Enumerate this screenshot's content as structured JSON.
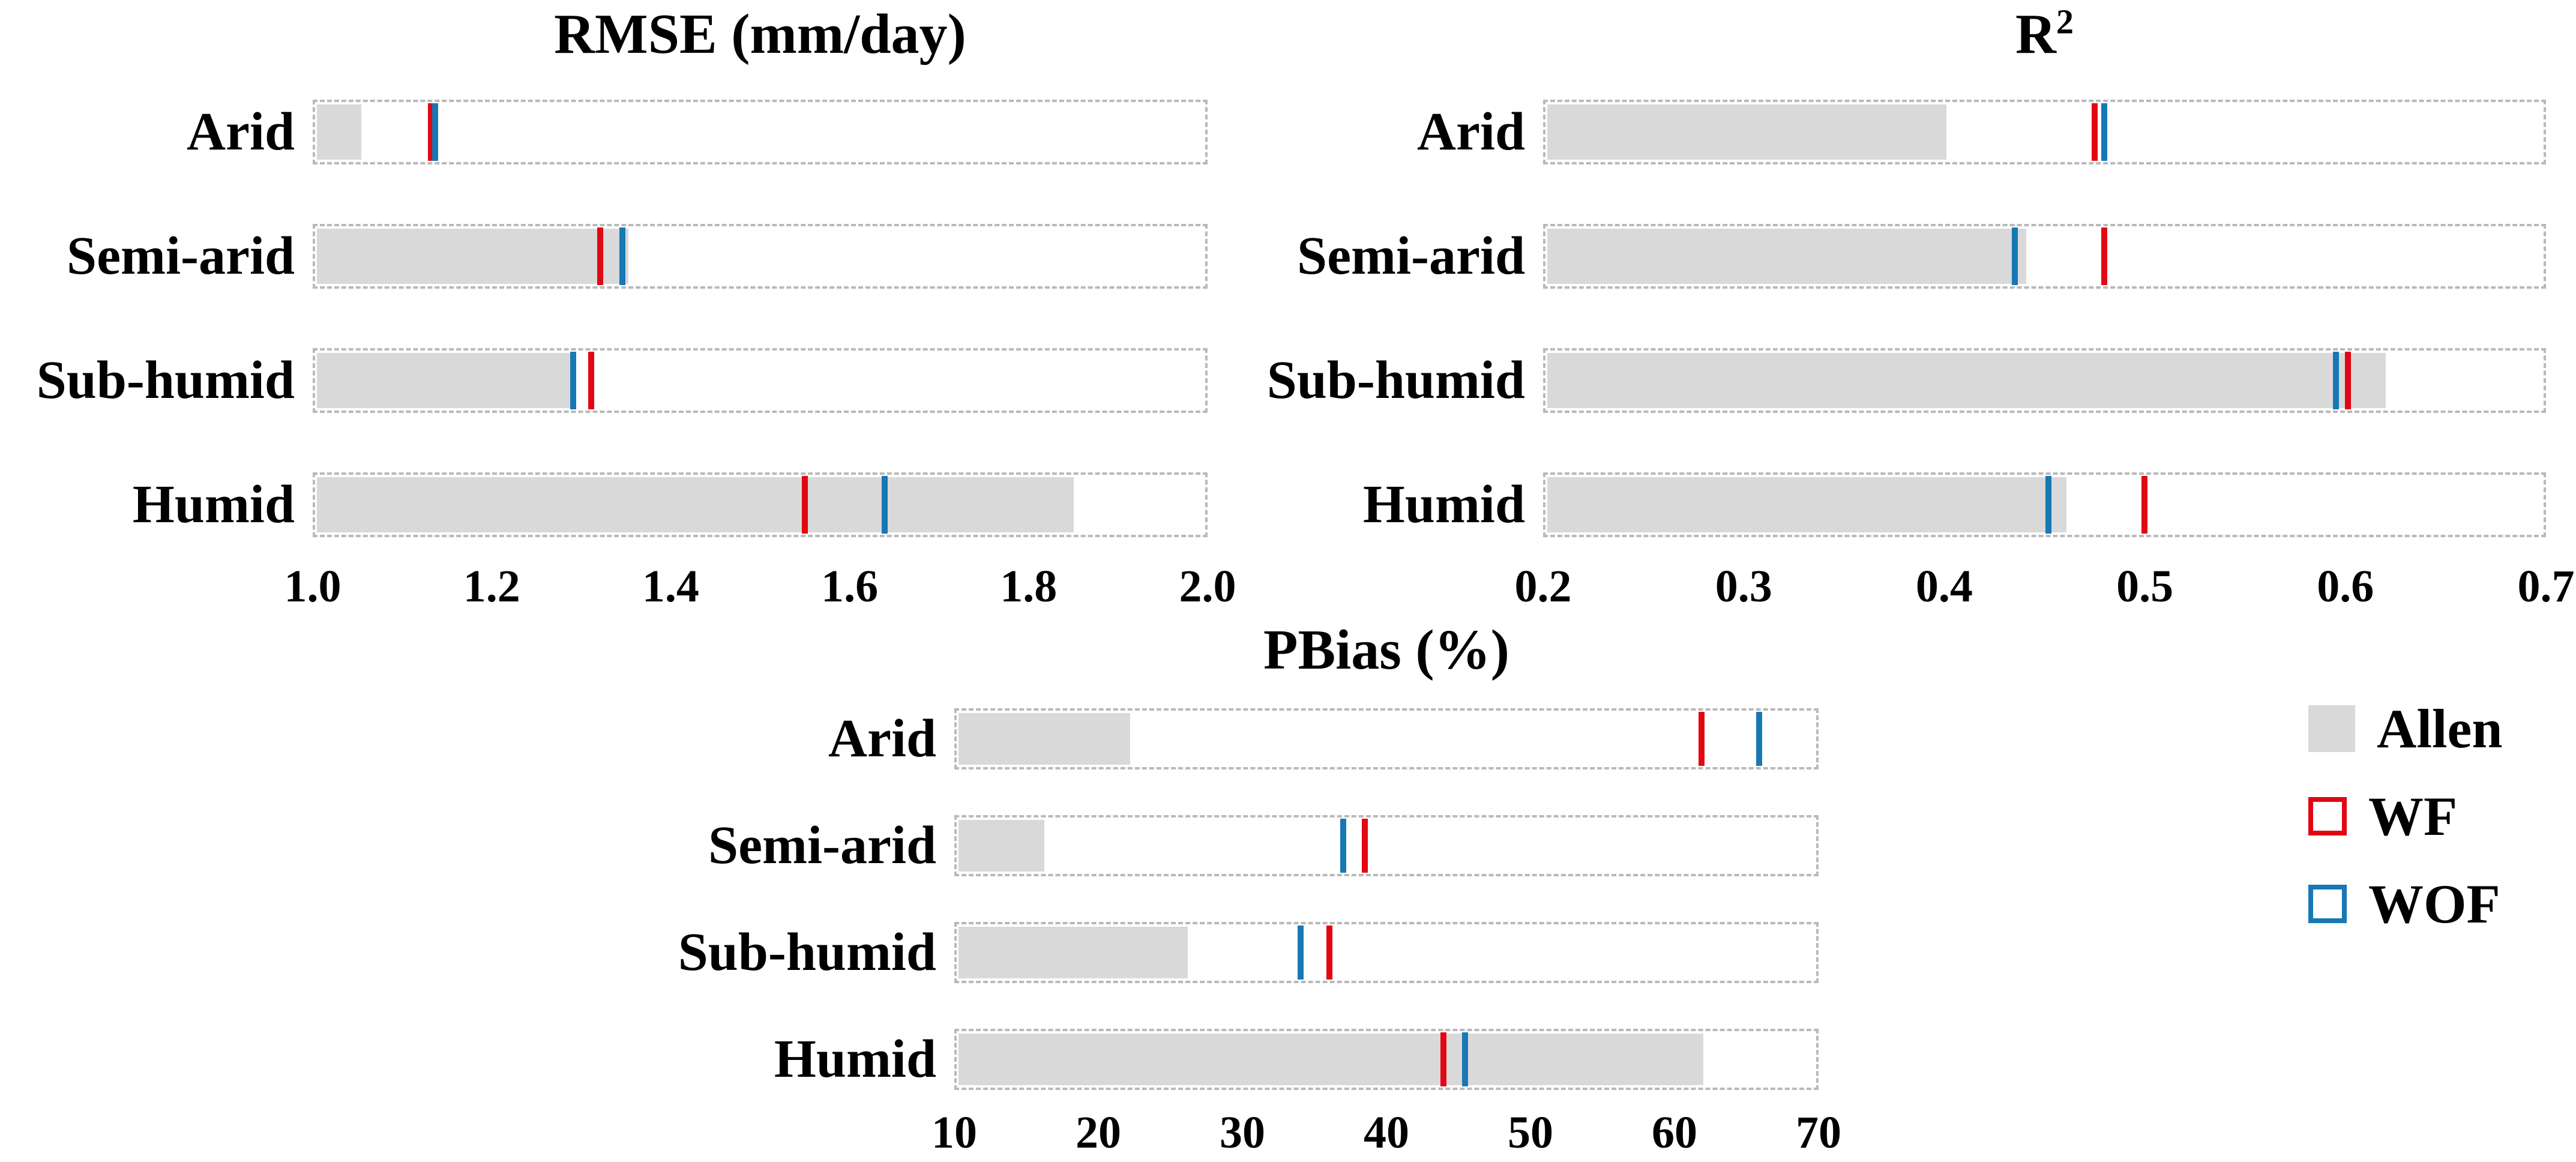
{
  "figure": {
    "background": "#ffffff",
    "text_color": "#000000",
    "frame_border_color": "#b9b9b9"
  },
  "legend": {
    "position": "right-of-pbias-chart",
    "items": [
      {
        "key": "allen",
        "label": "Allen",
        "swatch": "filled",
        "color": "#d9d9d9"
      },
      {
        "key": "wf",
        "label": "WF",
        "swatch": "outline",
        "color": "#e30613"
      },
      {
        "key": "wof",
        "label": "WOF",
        "swatch": "outline",
        "color": "#1778b4"
      }
    ]
  },
  "chart_data": [
    {
      "id": "rmse",
      "type": "bar",
      "orientation": "horizontal",
      "title": "RMSE (mm/day)",
      "categories": [
        "Arid",
        "Semi-arid",
        "Sub-humid",
        "Humid"
      ],
      "xlim": [
        1.0,
        2.0
      ],
      "xticks": [
        "1.0",
        "1.2",
        "1.4",
        "1.6",
        "1.8",
        "2.0"
      ],
      "grid": false,
      "frame": "dashed",
      "series": [
        {
          "name": "Allen",
          "style": "bar",
          "color": "#d9d9d9",
          "values": [
            1.05,
            1.35,
            1.285,
            1.85
          ]
        },
        {
          "name": "WF",
          "style": "tick",
          "color": "#e30613",
          "values": [
            1.13,
            1.32,
            1.31,
            1.55
          ]
        },
        {
          "name": "WOF",
          "style": "tick",
          "color": "#1778b4",
          "values": [
            1.135,
            1.345,
            1.29,
            1.64
          ]
        }
      ]
    },
    {
      "id": "r2",
      "type": "bar",
      "orientation": "horizontal",
      "title": "R",
      "title_sup": "2",
      "categories": [
        "Arid",
        "Semi-arid",
        "Sub-humid",
        "Humid"
      ],
      "xlim": [
        0.2,
        0.7
      ],
      "xticks": [
        "0.2",
        "0.3",
        "0.4",
        "0.5",
        "0.6",
        "0.7"
      ],
      "grid": false,
      "frame": "dashed",
      "series": [
        {
          "name": "Allen",
          "style": "bar",
          "color": "#d9d9d9",
          "values": [
            0.4,
            0.44,
            0.62,
            0.46
          ]
        },
        {
          "name": "WF",
          "style": "tick",
          "color": "#e30613",
          "values": [
            0.475,
            0.48,
            0.602,
            0.5
          ]
        },
        {
          "name": "WOF",
          "style": "tick",
          "color": "#1778b4",
          "values": [
            0.48,
            0.435,
            0.596,
            0.452
          ]
        }
      ]
    },
    {
      "id": "pbias",
      "type": "bar",
      "orientation": "horizontal",
      "title": "PBias (%)",
      "categories": [
        "Arid",
        "Semi-arid",
        "Sub-humid",
        "Humid"
      ],
      "xlim": [
        10,
        70
      ],
      "xticks": [
        "10",
        "20",
        "30",
        "40",
        "50",
        "60",
        "70"
      ],
      "grid": false,
      "frame": "dashed",
      "series": [
        {
          "name": "Allen",
          "style": "bar",
          "color": "#d9d9d9",
          "values": [
            22,
            16,
            26,
            62
          ]
        },
        {
          "name": "WF",
          "style": "tick",
          "color": "#e30613",
          "values": [
            62,
            38.5,
            36,
            44
          ]
        },
        {
          "name": "WOF",
          "style": "tick",
          "color": "#1778b4",
          "values": [
            66,
            37,
            34,
            45.5
          ]
        }
      ]
    }
  ]
}
